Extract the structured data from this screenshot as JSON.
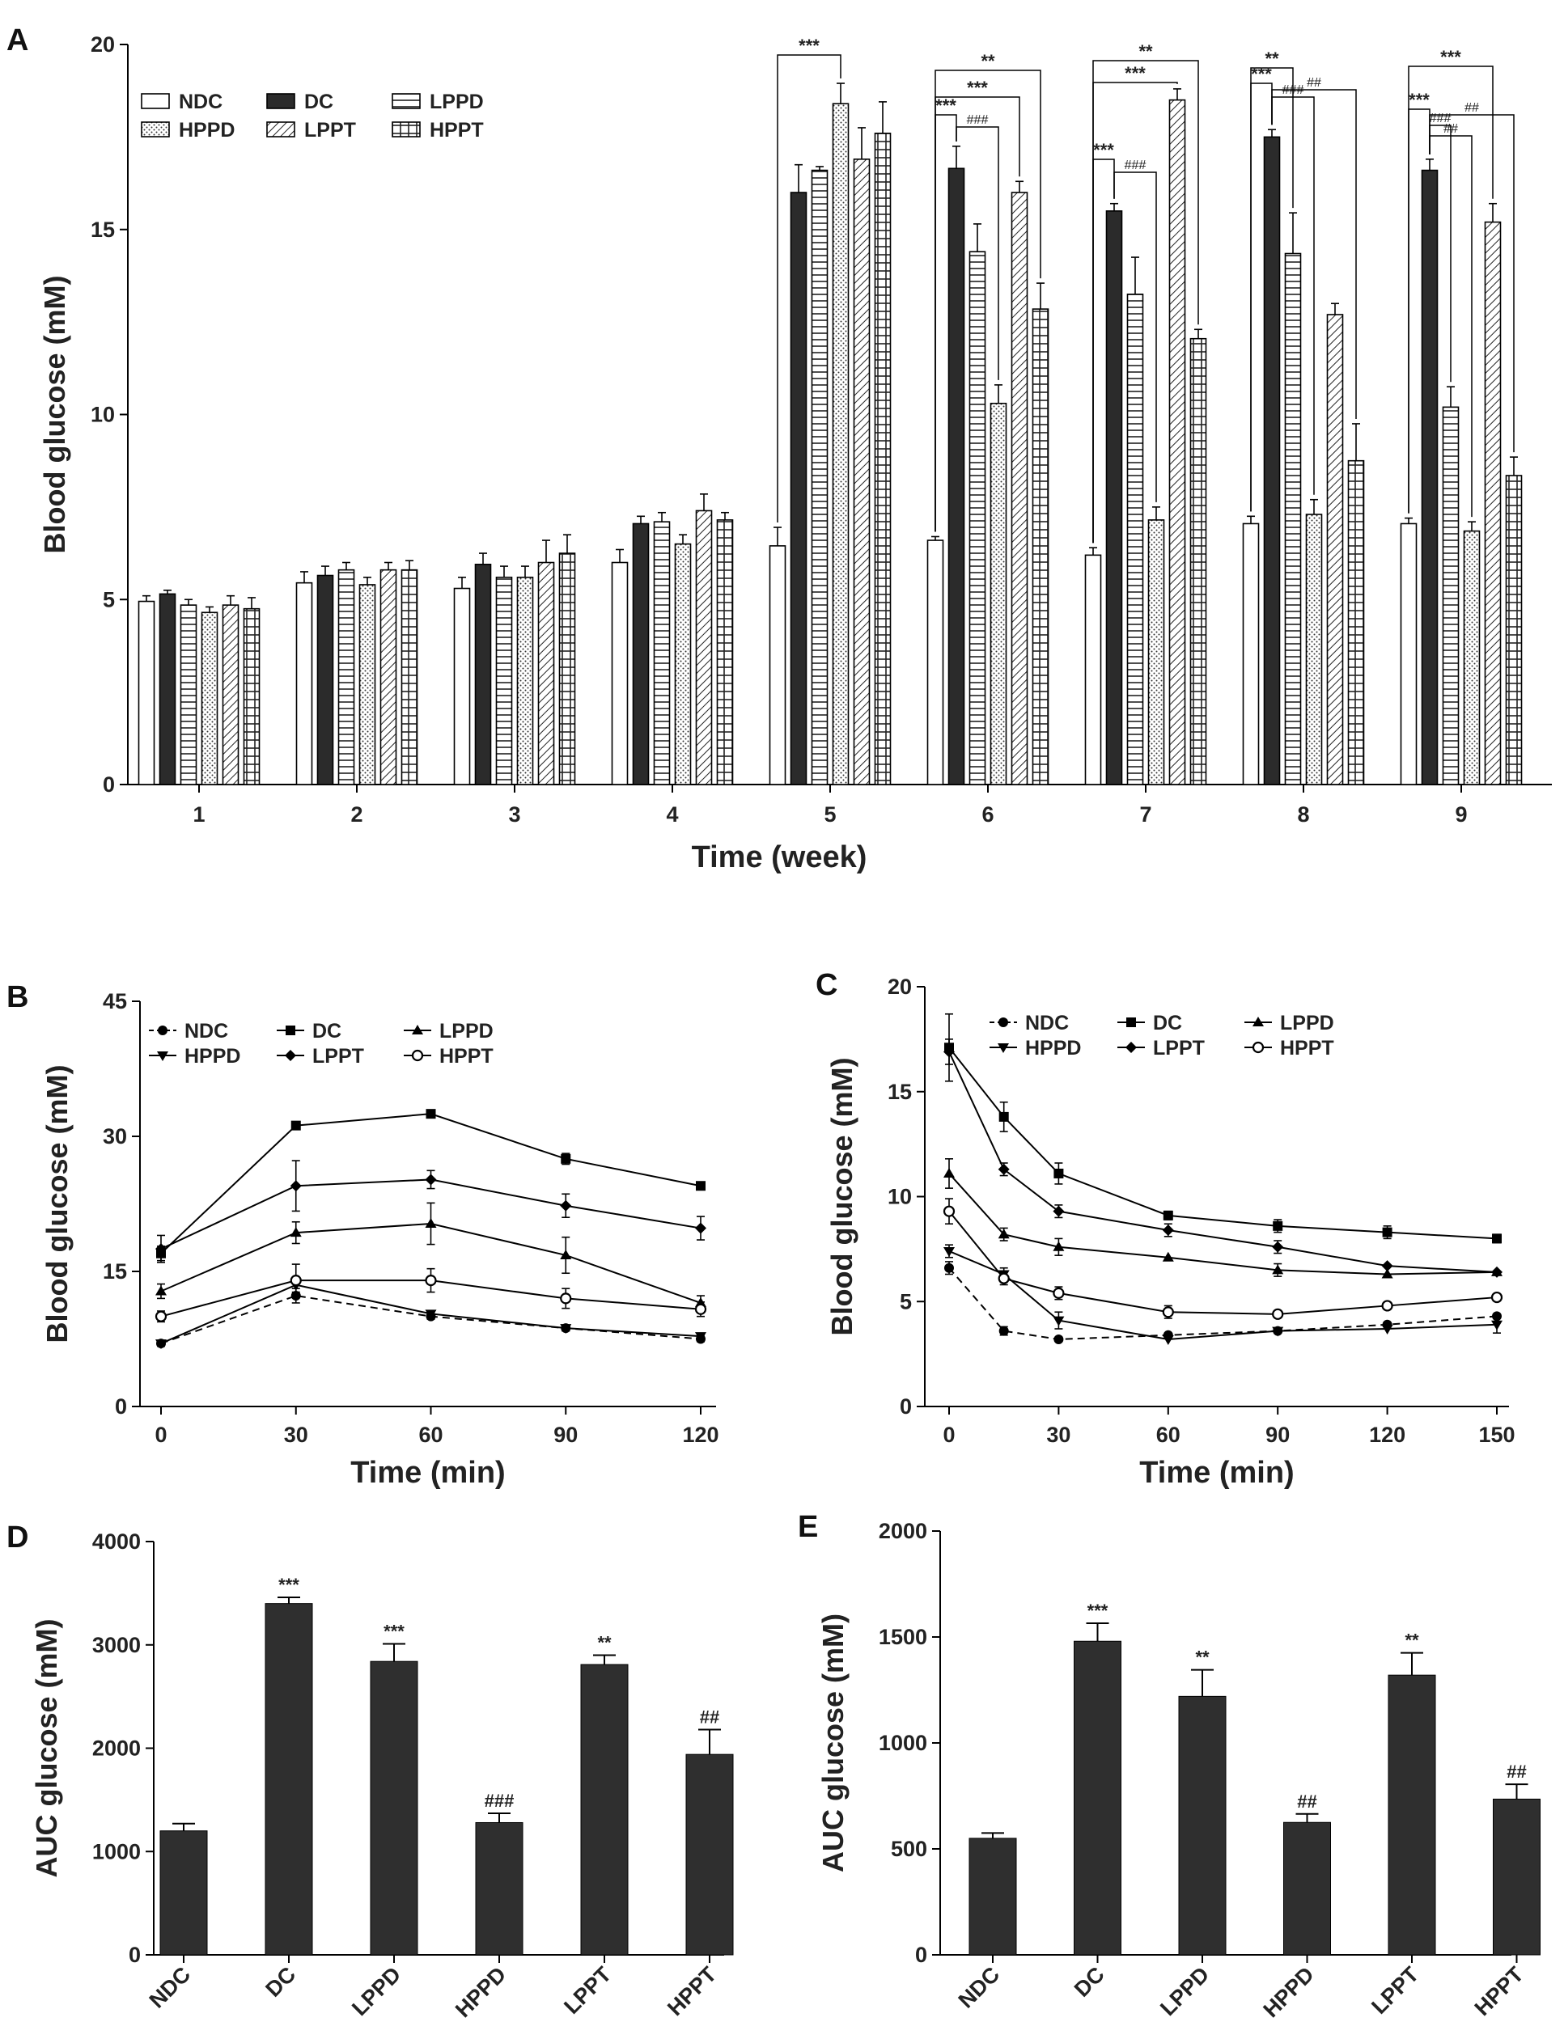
{
  "chart_data": [
    {
      "panel_label": "A",
      "type": "bar",
      "ylabel": "Blood glucose (mM)",
      "xlabel": "Time (week)",
      "ylim": [
        0,
        20
      ],
      "yticks": [
        "0",
        "5",
        "10",
        "15",
        "20"
      ],
      "categories": [
        "1",
        "2",
        "3",
        "4",
        "5",
        "6",
        "7",
        "8",
        "9"
      ],
      "series": [
        {
          "name": "NDC",
          "values": [
            4.95,
            5.45,
            5.3,
            6.0,
            6.45,
            6.6,
            6.2,
            7.05,
            7.05
          ],
          "errors": [
            0.15,
            0.3,
            0.3,
            0.35,
            0.5,
            0.1,
            0.2,
            0.2,
            0.15
          ]
        },
        {
          "name": "DC",
          "values": [
            5.15,
            5.65,
            5.95,
            7.05,
            16.0,
            16.65,
            15.5,
            17.5,
            16.6
          ],
          "errors": [
            0.1,
            0.25,
            0.3,
            0.2,
            0.75,
            0.6,
            0.2,
            0.2,
            0.3
          ]
        },
        {
          "name": "LPPD",
          "values": [
            4.85,
            5.8,
            5.6,
            7.1,
            16.6,
            14.4,
            13.25,
            14.35,
            10.2
          ],
          "errors": [
            0.15,
            0.2,
            0.3,
            0.25,
            0.1,
            0.75,
            1.0,
            1.1,
            0.55
          ]
        },
        {
          "name": "HPPD",
          "values": [
            4.65,
            5.4,
            5.6,
            6.5,
            18.4,
            10.3,
            7.15,
            7.3,
            6.85
          ],
          "errors": [
            0.15,
            0.2,
            0.3,
            0.25,
            0.55,
            0.5,
            0.35,
            0.4,
            0.25
          ]
        },
        {
          "name": "LPPT",
          "values": [
            4.85,
            5.8,
            6.0,
            7.4,
            16.9,
            16.0,
            18.5,
            12.7,
            15.2
          ],
          "errors": [
            0.25,
            0.2,
            0.6,
            0.45,
            0.85,
            0.3,
            0.3,
            0.3,
            0.5
          ]
        },
        {
          "name": "HPPT",
          "values": [
            4.75,
            5.8,
            6.25,
            7.15,
            17.6,
            12.85,
            12.05,
            8.75,
            8.35
          ],
          "errors": [
            0.3,
            0.25,
            0.5,
            0.2,
            0.85,
            0.7,
            0.25,
            1.0,
            0.5
          ]
        }
      ],
      "annotations": {
        "w5": [
          "***"
        ],
        "w6": [
          "**",
          "***",
          "***",
          "###"
        ],
        "w7": [
          "**",
          "***",
          "***",
          "###"
        ],
        "w8": [
          "**",
          "***",
          "###",
          "##"
        ],
        "w9": [
          "***",
          "***",
          "##",
          "###",
          "##"
        ]
      }
    },
    {
      "panel_label": "B",
      "type": "line",
      "ylabel": "Blood glucose (mM)",
      "xlabel": "Time (min)",
      "ylim": [
        0,
        45
      ],
      "yticks": [
        "0",
        "15",
        "30",
        "45"
      ],
      "x": [
        0,
        30,
        60,
        90,
        120
      ],
      "xticks": [
        "0",
        "30",
        "60",
        "90",
        "120"
      ],
      "series": [
        {
          "name": "NDC",
          "values": [
            7.0,
            12.3,
            10.0,
            8.7,
            7.5
          ],
          "errors": [
            0.3,
            0.8,
            0.3,
            0.3,
            0.3
          ],
          "marker": "circle",
          "dashed": true
        },
        {
          "name": "DC",
          "values": [
            17.0,
            31.2,
            32.5,
            27.5,
            24.5
          ],
          "errors": [
            0.8,
            0.3,
            0.3,
            0.6,
            0.3
          ],
          "marker": "square",
          "dashed": false
        },
        {
          "name": "LPPD",
          "values": [
            12.8,
            19.3,
            20.3,
            16.8,
            11.5
          ],
          "errors": [
            0.8,
            1.2,
            2.3,
            2.0,
            0.8
          ],
          "marker": "triangle-up",
          "dashed": false
        },
        {
          "name": "HPPD",
          "values": [
            7.0,
            13.5,
            10.3,
            8.7,
            7.8
          ],
          "errors": [
            0.3,
            0.8,
            0.3,
            0.3,
            0.3
          ],
          "marker": "triangle-down",
          "dashed": false
        },
        {
          "name": "LPPT",
          "values": [
            17.5,
            24.5,
            25.2,
            22.3,
            19.8
          ],
          "errors": [
            1.5,
            2.8,
            1.0,
            1.3,
            1.3
          ],
          "marker": "diamond",
          "dashed": false
        },
        {
          "name": "HPPT",
          "values": [
            10.0,
            14.0,
            14.0,
            12.0,
            10.8
          ],
          "errors": [
            0.6,
            1.8,
            1.3,
            1.1,
            0.8
          ],
          "marker": "circle-open",
          "dashed": false
        }
      ]
    },
    {
      "panel_label": "C",
      "type": "line",
      "ylabel": "Blood glucose (mM)",
      "xlabel": "Time (min)",
      "ylim": [
        0,
        20
      ],
      "yticks": [
        "0",
        "5",
        "10",
        "15",
        "20"
      ],
      "x": [
        0,
        15,
        30,
        60,
        90,
        120,
        150
      ],
      "xticks": [
        "0",
        "30",
        "60",
        "90",
        "120",
        "150"
      ],
      "series": [
        {
          "name": "NDC",
          "values": [
            6.6,
            3.6,
            3.2,
            3.4,
            3.6,
            3.9,
            4.3
          ],
          "errors": [
            0.3,
            0.2,
            0.1,
            0.1,
            0.1,
            0.1,
            0.1
          ],
          "marker": "circle",
          "dashed": true
        },
        {
          "name": "DC",
          "values": [
            17.1,
            13.8,
            11.1,
            9.1,
            8.6,
            8.3,
            8.0
          ],
          "errors": [
            1.6,
            0.7,
            0.5,
            0.2,
            0.3,
            0.3,
            0.2
          ],
          "marker": "square",
          "dashed": false
        },
        {
          "name": "LPPD",
          "values": [
            11.1,
            8.2,
            7.6,
            7.1,
            6.5,
            6.3,
            6.4
          ],
          "errors": [
            0.7,
            0.3,
            0.4,
            0.1,
            0.3,
            0.1,
            0.1
          ],
          "marker": "triangle-up",
          "dashed": false
        },
        {
          "name": "HPPD",
          "values": [
            7.4,
            6.3,
            4.1,
            3.2,
            3.6,
            3.7,
            3.9
          ],
          "errors": [
            0.3,
            0.3,
            0.4,
            0.1,
            0.1,
            0.1,
            0.4
          ],
          "marker": "triangle-down",
          "dashed": false
        },
        {
          "name": "LPPT",
          "values": [
            16.9,
            11.3,
            9.3,
            8.4,
            7.6,
            6.7,
            6.4
          ],
          "errors": [
            0.6,
            0.3,
            0.3,
            0.3,
            0.3,
            0.1,
            0.1
          ],
          "marker": "diamond",
          "dashed": false
        },
        {
          "name": "HPPT",
          "values": [
            9.3,
            6.1,
            5.4,
            4.5,
            4.4,
            4.8,
            5.2
          ],
          "errors": [
            0.6,
            0.3,
            0.3,
            0.3,
            0.1,
            0.1,
            0.1
          ],
          "marker": "circle-open",
          "dashed": false
        }
      ]
    },
    {
      "panel_label": "D",
      "type": "bar",
      "ylabel": "AUC glucose (mM)",
      "ylim": [
        0,
        4000
      ],
      "yticks": [
        "0",
        "1000",
        "2000",
        "3000",
        "4000"
      ],
      "categories": [
        "NDC",
        "DC",
        "LPPD",
        "HPPD",
        "LPPT",
        "HPPT"
      ],
      "values": [
        1200,
        3400,
        2840,
        1280,
        2810,
        1940
      ],
      "errors": [
        70,
        60,
        170,
        90,
        90,
        240
      ],
      "labels": [
        "",
        "***",
        "***",
        "###",
        "**",
        "##"
      ]
    },
    {
      "panel_label": "E",
      "type": "bar",
      "ylabel": "AUC glucose (mM)",
      "ylim": [
        0,
        2000
      ],
      "yticks": [
        "0",
        "500",
        "1000",
        "1500",
        "2000"
      ],
      "categories": [
        "NDC",
        "DC",
        "LPPD",
        "HPPD",
        "LPPT",
        "HPPT"
      ],
      "values": [
        550,
        1480,
        1220,
        625,
        1320,
        735
      ],
      "errors": [
        25,
        85,
        125,
        40,
        105,
        70
      ],
      "labels": [
        "",
        "***",
        "**",
        "##",
        "**",
        "##"
      ]
    }
  ]
}
